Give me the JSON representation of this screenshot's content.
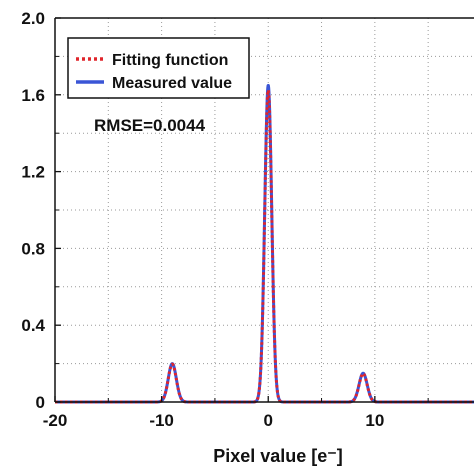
{
  "chart_data": {
    "type": "line",
    "xlabel": "Pixel value [e⁻]",
    "ylabel": "",
    "xlim": [
      -20,
      19.3
    ],
    "ylim": [
      0,
      2.0
    ],
    "x_ticks": [
      -20,
      -10,
      0,
      10
    ],
    "x_tick_labels": [
      "-20",
      "-10",
      "0",
      "10"
    ],
    "y_ticks": [
      0,
      0.4,
      0.8,
      1.2,
      1.6,
      2.0
    ],
    "y_tick_labels": [
      "0",
      "0.4",
      "0.8",
      "1.2",
      "1.6",
      "2.0"
    ],
    "grid": true,
    "legend_position": "top-left",
    "annotation": "RMSE=0.0044",
    "peaks": [
      {
        "center": -9.0,
        "height": 0.2,
        "width": 0.38
      },
      {
        "center": 0.0,
        "height": 1.65,
        "width": 0.33
      },
      {
        "center": 8.9,
        "height": 0.15,
        "width": 0.38
      }
    ],
    "series": [
      {
        "name": "Fitting function",
        "color": "#e0252b",
        "style": "dotted"
      },
      {
        "name": "Measured value",
        "color": "#3a55d6",
        "style": "solid"
      }
    ]
  }
}
